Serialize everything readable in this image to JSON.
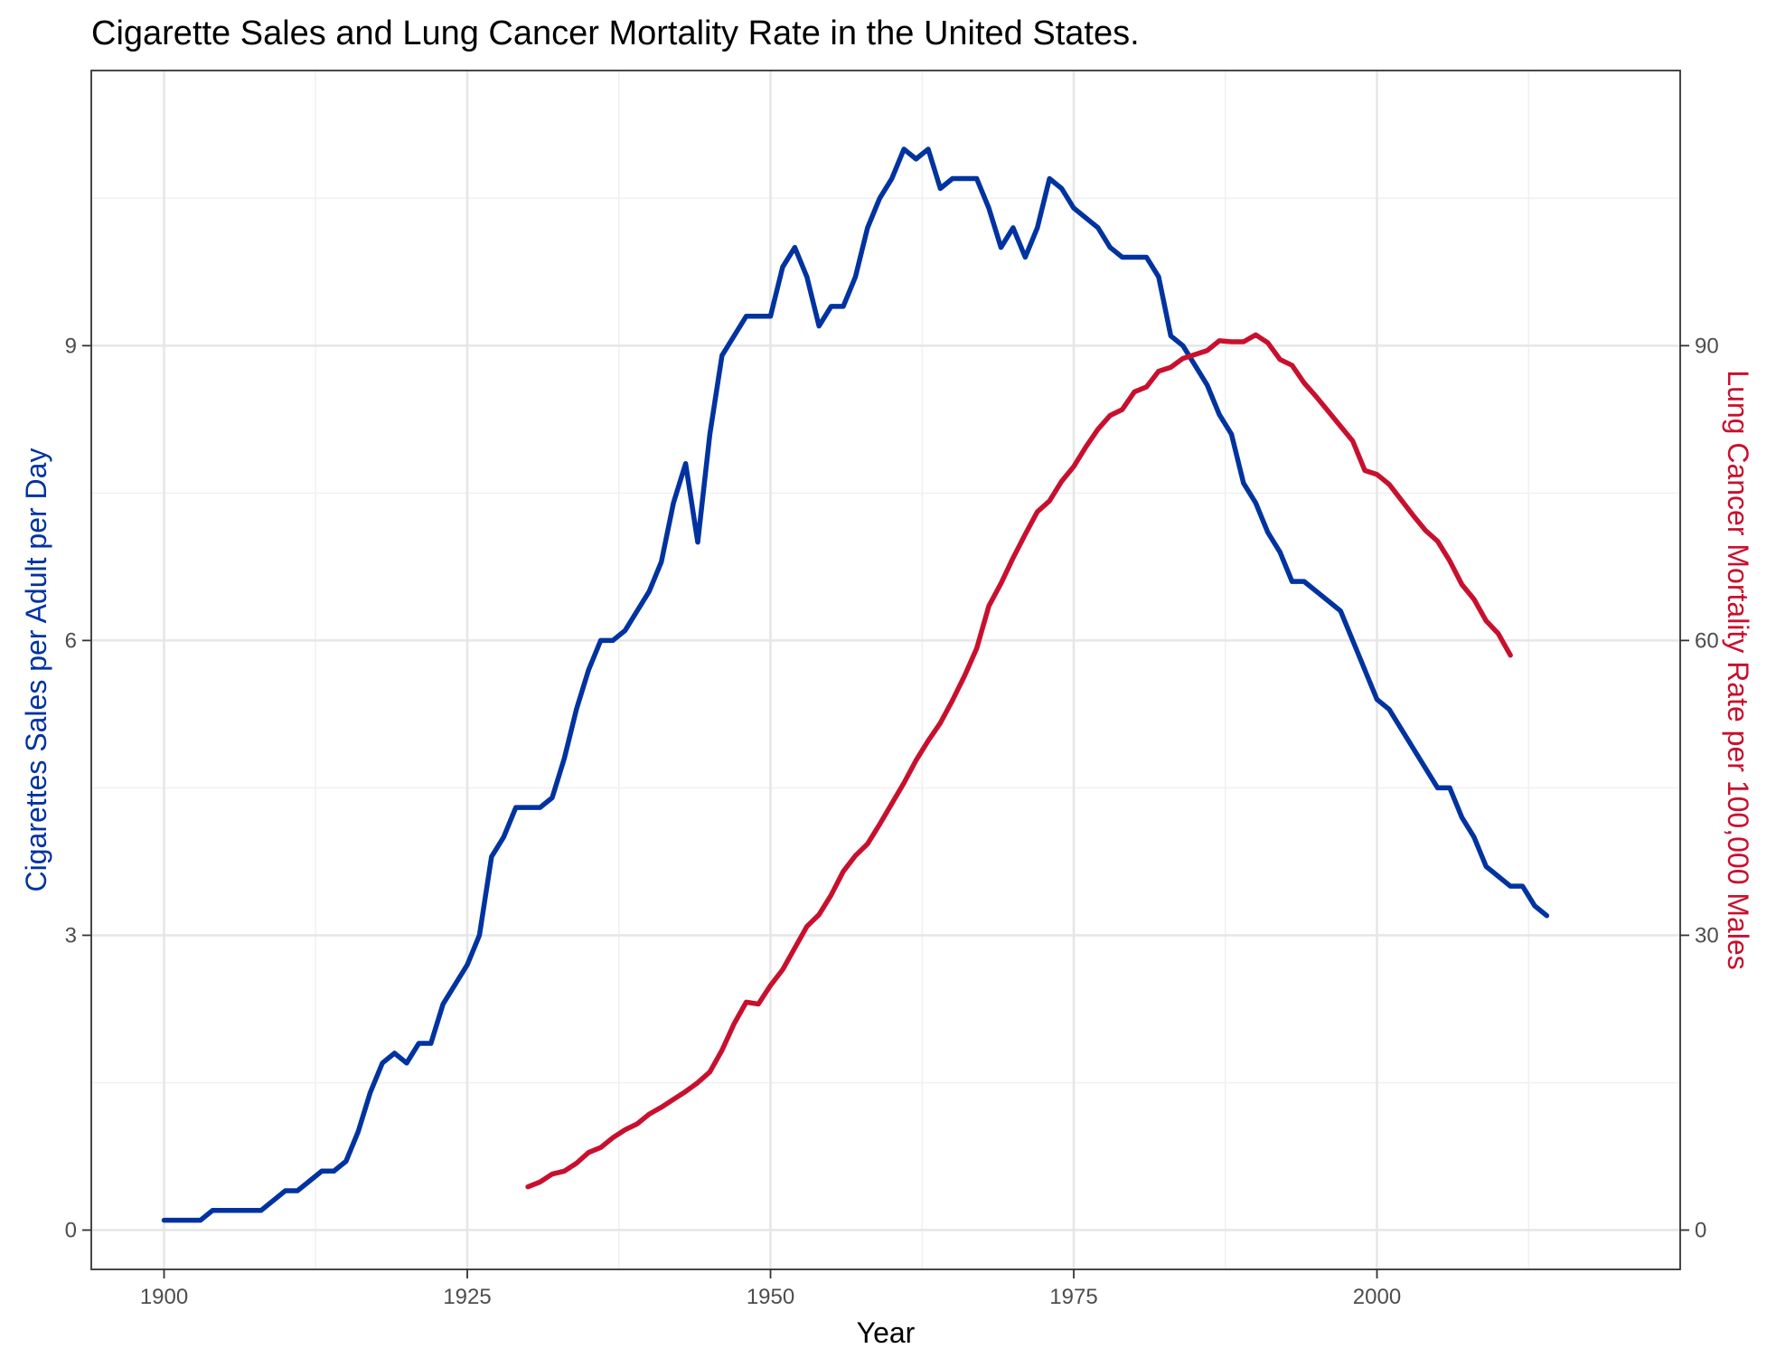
{
  "chart_data": {
    "type": "line",
    "title": "Cigarette Sales and Lung Cancer Mortality Rate in the United States.",
    "xlabel": "Year",
    "ylabel": "Cigarettes Sales per Adult per Day",
    "y2label": "Lung Cancer Mortality Rate per 100,000 Males",
    "xlim": [
      1894,
      2025
    ],
    "ylim": [
      -0.4,
      11.8
    ],
    "y2lim": [
      -4,
      118
    ],
    "x_ticks": [
      1900,
      1925,
      1950,
      1975,
      2000
    ],
    "x_minor_ticks": [
      1912.5,
      1937.5,
      1962.5,
      1987.5,
      2012.5
    ],
    "y_ticks": [
      0,
      3,
      6,
      9
    ],
    "y_minor_ticks": [
      1.5,
      4.5,
      7.5,
      10.5
    ],
    "y2_ticks": [
      0,
      30,
      60,
      90
    ],
    "grid": true,
    "legend": "none",
    "colors": {
      "sales": "#0033a0",
      "mortality": "#c8102e",
      "grid": "#e6e6e6",
      "frame": "#333333"
    },
    "series": [
      {
        "axis": "left",
        "color": "#0033a0",
        "x": [
          1900,
          1901,
          1902,
          1903,
          1904,
          1905,
          1906,
          1907,
          1908,
          1909,
          1910,
          1911,
          1912,
          1913,
          1914,
          1915,
          1916,
          1917,
          1918,
          1919,
          1920,
          1921,
          1922,
          1923,
          1924,
          1925,
          1926,
          1927,
          1928,
          1929,
          1930,
          1931,
          1932,
          1933,
          1934,
          1935,
          1936,
          1937,
          1938,
          1939,
          1940,
          1941,
          1942,
          1943,
          1944,
          1945,
          1946,
          1947,
          1948,
          1949,
          1950,
          1951,
          1952,
          1953,
          1954,
          1955,
          1956,
          1957,
          1958,
          1959,
          1960,
          1961,
          1962,
          1963,
          1964,
          1965,
          1966,
          1967,
          1968,
          1969,
          1970,
          1971,
          1972,
          1973,
          1974,
          1975,
          1976,
          1977,
          1978,
          1979,
          1980,
          1981,
          1982,
          1983,
          1984,
          1985,
          1986,
          1987,
          1988,
          1989,
          1990,
          1991,
          1992,
          1993,
          1994,
          1995,
          1996,
          1997,
          1998,
          1999,
          2000,
          2001,
          2002,
          2003,
          2004,
          2005,
          2006,
          2007,
          2008,
          2009,
          2010,
          2011,
          2012,
          2013,
          2014
        ],
        "values": [
          0.1,
          0.1,
          0.1,
          0.1,
          0.2,
          0.2,
          0.2,
          0.2,
          0.2,
          0.3,
          0.4,
          0.4,
          0.5,
          0.6,
          0.6,
          0.7,
          1.0,
          1.4,
          1.7,
          1.8,
          1.7,
          1.9,
          1.9,
          2.3,
          2.5,
          2.7,
          3.0,
          3.8,
          4.0,
          4.3,
          4.3,
          4.3,
          4.4,
          4.8,
          5.3,
          5.7,
          6.0,
          6.0,
          6.1,
          6.3,
          6.5,
          6.8,
          7.4,
          7.8,
          7.0,
          8.1,
          8.9,
          9.1,
          9.3,
          9.3,
          9.3,
          9.8,
          10.0,
          9.7,
          9.2,
          9.4,
          9.4,
          9.7,
          10.2,
          10.5,
          10.7,
          11.0,
          10.9,
          11.0,
          10.6,
          10.7,
          10.7,
          10.7,
          10.4,
          10.0,
          10.2,
          9.9,
          10.2,
          10.7,
          10.6,
          10.4,
          10.3,
          10.2,
          10.0,
          9.9,
          9.9,
          9.9,
          9.7,
          9.1,
          9.0,
          8.8,
          8.6,
          8.3,
          8.1,
          7.6,
          7.4,
          7.1,
          6.9,
          6.6,
          6.6,
          6.5,
          6.4,
          6.3,
          6.0,
          5.7,
          5.4,
          5.3,
          5.1,
          4.9,
          4.7,
          4.5,
          4.5,
          4.2,
          4.0,
          3.7,
          3.6,
          3.5,
          3.5,
          3.3,
          3.2
        ]
      },
      {
        "axis": "right",
        "color": "#c8102e",
        "x": [
          1930,
          1931,
          1932,
          1933,
          1934,
          1935,
          1936,
          1937,
          1938,
          1939,
          1940,
          1941,
          1942,
          1943,
          1944,
          1945,
          1946,
          1947,
          1948,
          1949,
          1950,
          1951,
          1952,
          1953,
          1954,
          1955,
          1956,
          1957,
          1958,
          1959,
          1960,
          1961,
          1962,
          1963,
          1964,
          1965,
          1966,
          1967,
          1968,
          1969,
          1970,
          1971,
          1972,
          1973,
          1974,
          1975,
          1976,
          1977,
          1978,
          1979,
          1980,
          1981,
          1982,
          1983,
          1984,
          1985,
          1986,
          1987,
          1988,
          1989,
          1990,
          1991,
          1992,
          1993,
          1994,
          1995,
          1996,
          1997,
          1998,
          1999,
          2000,
          2001,
          2002,
          2003,
          2004,
          2005,
          2006,
          2007,
          2008,
          2009,
          2010,
          2011
        ],
        "values": [
          4.4,
          4.9,
          5.7,
          6.0,
          6.8,
          7.9,
          8.4,
          9.4,
          10.2,
          10.8,
          11.8,
          12.5,
          13.3,
          14.1,
          15.0,
          16.1,
          18.3,
          21.0,
          23.2,
          23.0,
          24.9,
          26.5,
          28.7,
          30.9,
          32.1,
          34.1,
          36.5,
          38.1,
          39.3,
          41.3,
          43.4,
          45.5,
          47.8,
          49.8,
          51.6,
          53.9,
          56.4,
          59.2,
          63.5,
          65.8,
          68.4,
          70.8,
          73.1,
          74.2,
          76.2,
          77.7,
          79.7,
          81.5,
          82.9,
          83.5,
          85.3,
          85.8,
          87.4,
          87.8,
          88.7,
          89.1,
          89.5,
          90.5,
          90.4,
          90.4,
          91.1,
          90.3,
          88.6,
          88.0,
          86.2,
          84.8,
          83.3,
          81.8,
          80.3,
          77.3,
          76.9,
          75.9,
          74.3,
          72.7,
          71.2,
          70.1,
          68.1,
          65.7,
          64.2,
          62.0,
          60.7,
          58.5
        ]
      }
    ]
  }
}
